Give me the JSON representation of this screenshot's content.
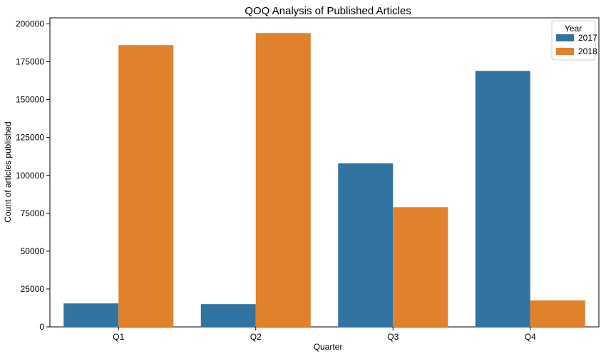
{
  "chart_data": {
    "type": "bar",
    "title": "QOQ Analysis of Published Articles",
    "xlabel": "Quarter",
    "ylabel": "Count of articles published",
    "categories": [
      "Q1",
      "Q2",
      "Q3",
      "Q4"
    ],
    "ylim": [
      0,
      204000
    ],
    "yticks": [
      0,
      25000,
      50000,
      75000,
      100000,
      125000,
      150000,
      175000,
      200000
    ],
    "grid": false,
    "legend": {
      "title": "Year",
      "placement": "top-right"
    },
    "series": [
      {
        "name": "2017",
        "color": "#3274a1",
        "values": [
          15500,
          15000,
          108000,
          169000
        ]
      },
      {
        "name": "2018",
        "color": "#e1812c",
        "values": [
          186000,
          194000,
          79000,
          17500
        ]
      }
    ]
  }
}
